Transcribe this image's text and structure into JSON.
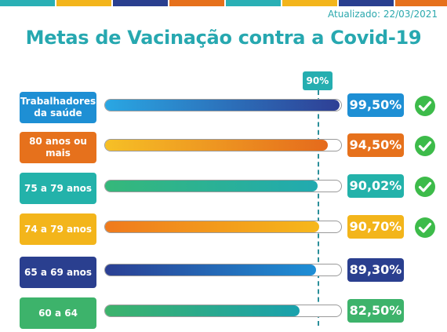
{
  "updated": "Atualizado: 22/03/2021",
  "chart_data": {
    "type": "bar",
    "orientation": "horizontal",
    "title": "Metas de Vacinação contra a Covid-19",
    "reference": {
      "label": "90%",
      "value": 90
    },
    "xlim": [
      0,
      100
    ],
    "categories": [
      "Trabalhadores da saúde",
      "80 anos ou mais",
      "75 a 79 anos",
      "74 a 79 anos",
      "65 a 69 anos",
      "60 a 64"
    ],
    "values": [
      99.5,
      94.5,
      90.02,
      90.7,
      89.3,
      82.5
    ],
    "value_labels": [
      "99,50%",
      "94,50%",
      "90,02%",
      "90,70%",
      "89,30%",
      "82,50%"
    ],
    "goal_met": [
      true,
      true,
      true,
      true,
      false,
      false
    ],
    "colors": [
      "#1e8fd4",
      "#e6711c",
      "#23b2aa",
      "#f3b51b",
      "#2a3f8f",
      "#3db36b"
    ],
    "fill_gradients": [
      [
        "#2aa7e3",
        "#2e3f95"
      ],
      [
        "#f6c026",
        "#e56a1c"
      ],
      [
        "#35b87a",
        "#21aab0"
      ],
      [
        "#ef7a1d",
        "#f6b81c"
      ],
      [
        "#2b3f93",
        "#1e8fd6"
      ],
      [
        "#3db36b",
        "#1aa1ad"
      ]
    ],
    "check_color": "#3dbb4a"
  }
}
